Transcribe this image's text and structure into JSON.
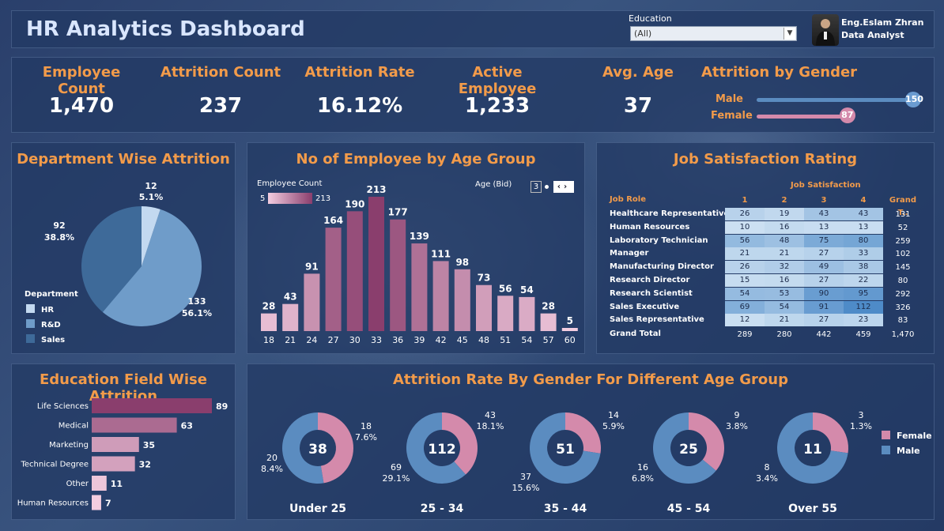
{
  "header": {
    "title": "HR Analytics Dashboard",
    "education_label": "Education",
    "education_value": "(All)",
    "author_name": "Eng.Eslam Zhran",
    "author_role": "Data Analyst"
  },
  "kpis": [
    {
      "label": "Employee Count",
      "value": "1,470"
    },
    {
      "label": "Attrition Count",
      "value": "237"
    },
    {
      "label": "Attrition Rate",
      "value": "16.12%"
    },
    {
      "label": "Active Employee",
      "value": "1,233"
    },
    {
      "label": "Avg. Age",
      "value": "37"
    }
  ],
  "attrition_by_gender": {
    "title": "Attrition by Gender",
    "male_label": "Male",
    "male_value": 150,
    "female_label": "Female",
    "female_value": 87,
    "max": 150
  },
  "colors": {
    "orange": "#f29b4a",
    "hr": "#c3d9f0",
    "rnd": "#6f9cc9",
    "sales": "#3e6a99",
    "male": "#5b8cc0",
    "female": "#d48aab"
  },
  "chart_data": [
    {
      "id": "dept",
      "type": "pie",
      "title": "Department Wise Attrition",
      "legend_title": "Department",
      "categories": [
        "HR",
        "R&D",
        "Sales"
      ],
      "values": [
        12,
        133,
        92
      ],
      "labels": [
        "5.1%",
        "56.1%",
        "38.8%"
      ]
    },
    {
      "id": "age",
      "type": "bar",
      "title": "No of Employee by Age Group",
      "legend_title": "Employee Count",
      "legend_min": "5",
      "legend_max": "213",
      "bin_label": "Age (Bid)",
      "bin_value": "3",
      "categories": [
        "18",
        "21",
        "24",
        "27",
        "30",
        "33",
        "36",
        "39",
        "42",
        "45",
        "48",
        "51",
        "54",
        "57",
        "60"
      ],
      "values": [
        28,
        43,
        91,
        164,
        190,
        213,
        177,
        139,
        111,
        98,
        73,
        56,
        54,
        28,
        5
      ]
    },
    {
      "id": "jobsat",
      "type": "table",
      "title": "Job Satisfaction Rating",
      "column_group": "Job Satisfaction",
      "row_header": "Job Role",
      "columns": [
        "1",
        "2",
        "3",
        "4",
        "Grand T.."
      ],
      "rows": [
        {
          "role": "Healthcare Representative",
          "values": [
            26,
            19,
            43,
            43
          ],
          "total": "131"
        },
        {
          "role": "Human Resources",
          "values": [
            10,
            16,
            13,
            13
          ],
          "total": "52"
        },
        {
          "role": "Laboratory Technician",
          "values": [
            56,
            48,
            75,
            80
          ],
          "total": "259"
        },
        {
          "role": "Manager",
          "values": [
            21,
            21,
            27,
            33
          ],
          "total": "102"
        },
        {
          "role": "Manufacturing Director",
          "values": [
            26,
            32,
            49,
            38
          ],
          "total": "145"
        },
        {
          "role": "Research Director",
          "values": [
            15,
            16,
            27,
            22
          ],
          "total": "80"
        },
        {
          "role": "Research Scientist",
          "values": [
            54,
            53,
            90,
            95
          ],
          "total": "292"
        },
        {
          "role": "Sales Executive",
          "values": [
            69,
            54,
            91,
            112
          ],
          "total": "326"
        },
        {
          "role": "Sales Representative",
          "values": [
            12,
            21,
            27,
            23
          ],
          "total": "83"
        }
      ],
      "total_label": "Grand Total",
      "totals": [
        "289",
        "280",
        "442",
        "459",
        "1,470"
      ]
    },
    {
      "id": "edu",
      "type": "bar",
      "orientation": "horizontal",
      "title": "Education Field Wise Attrition",
      "categories": [
        "Life Sciences",
        "Medical",
        "Marketing",
        "Technical Degree",
        "Other",
        "Human Resources"
      ],
      "values": [
        89,
        63,
        35,
        32,
        11,
        7
      ]
    },
    {
      "id": "gender_age",
      "type": "pie",
      "subtype": "donut",
      "title": "Attrition Rate By Gender For Different Age Group",
      "legend": [
        "Female",
        "Male"
      ],
      "groups": [
        {
          "name": "Under 25",
          "total": "38",
          "female": 18,
          "female_pct": "7.6%",
          "male": 20,
          "male_pct": "8.4%"
        },
        {
          "name": "25 - 34",
          "total": "112",
          "female": 43,
          "female_pct": "18.1%",
          "male": 69,
          "male_pct": "29.1%"
        },
        {
          "name": "35 - 44",
          "total": "51",
          "female": 14,
          "female_pct": "5.9%",
          "male": 37,
          "male_pct": "15.6%"
        },
        {
          "name": "45 - 54",
          "total": "25",
          "female": 9,
          "female_pct": "3.8%",
          "male": 16,
          "male_pct": "6.8%"
        },
        {
          "name": "Over 55",
          "total": "11",
          "female": 3,
          "female_pct": "1.3%",
          "male": 8,
          "male_pct": "3.4%"
        }
      ]
    }
  ]
}
